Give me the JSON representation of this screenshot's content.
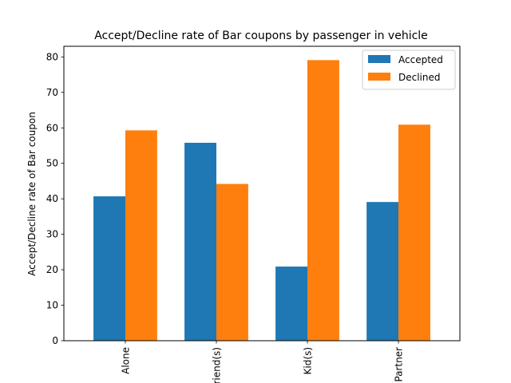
{
  "chart_data": {
    "type": "bar",
    "title": "Accept/Decline rate of Bar coupons by passenger in vehicle",
    "xlabel": "",
    "ylabel": "Accept/Decline rate of Bar coupon",
    "categories": [
      "Alone",
      "Friend(s)",
      "Kid(s)",
      "Partner"
    ],
    "series": [
      {
        "name": "Accepted",
        "values": [
          40.7,
          55.8,
          20.9,
          39.1
        ],
        "color": "#1f77b4"
      },
      {
        "name": "Declined",
        "values": [
          59.3,
          44.2,
          79.1,
          60.9
        ],
        "color": "#ff7f0e"
      }
    ],
    "ylim": [
      0,
      83
    ],
    "yticks": [
      0,
      10,
      20,
      30,
      40,
      50,
      60,
      70,
      80
    ],
    "grid": false,
    "legend_position": "top-right"
  }
}
